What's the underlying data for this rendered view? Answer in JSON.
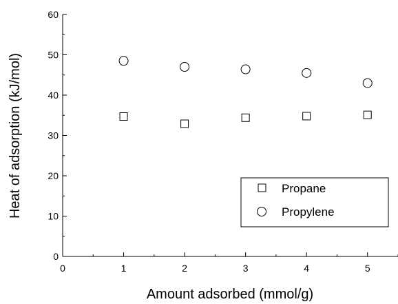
{
  "chart_data": {
    "type": "scatter",
    "title": "",
    "xlabel": "Amount adsorbed (mmol/g)",
    "ylabel": "Heat of adsorption (kJ/mol)",
    "xlim": [
      0,
      5.5
    ],
    "ylim": [
      0,
      60
    ],
    "xticks": [
      "0",
      "1",
      "2",
      "3",
      "4",
      "5"
    ],
    "yticks": [
      "0",
      "10",
      "20",
      "30",
      "40",
      "50",
      "60"
    ],
    "grid": false,
    "legend_position": "bottom-right",
    "series": [
      {
        "name": "Propane",
        "marker": "square",
        "x": [
          1,
          2,
          3,
          4,
          5
        ],
        "y": [
          34.7,
          32.9,
          34.4,
          34.8,
          35.1
        ]
      },
      {
        "name": "Propylene",
        "marker": "circle",
        "x": [
          1,
          2,
          3,
          4,
          5
        ],
        "y": [
          48.5,
          47.0,
          46.4,
          45.5,
          43.0
        ]
      }
    ]
  }
}
